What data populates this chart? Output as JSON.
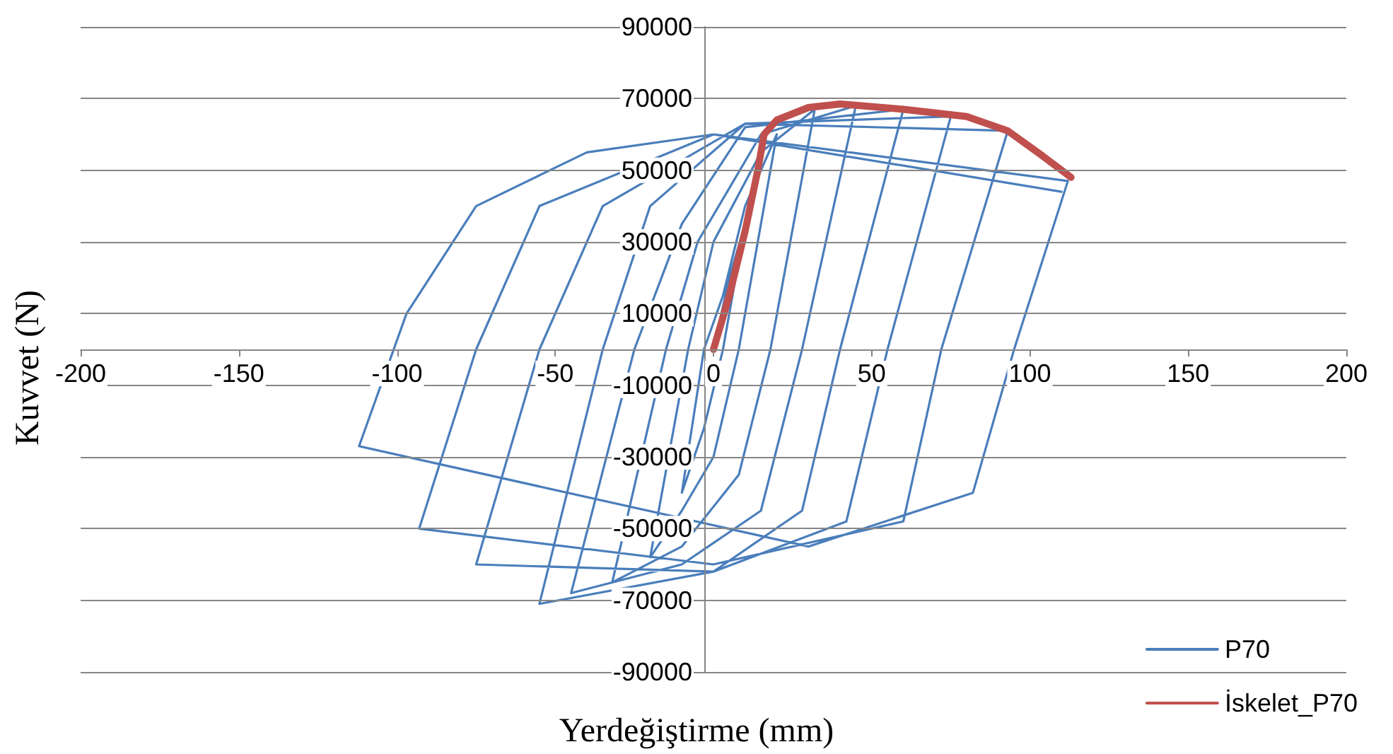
{
  "chart_data": {
    "type": "line",
    "xlabel": "Yerdeğiştirme (mm)",
    "ylabel": "Kuvvet (N)",
    "xlim": [
      -200,
      200
    ],
    "xticks": [
      -200,
      -150,
      -100,
      -50,
      0,
      50,
      100,
      150,
      200
    ],
    "ylim": [
      -90000,
      90000
    ],
    "yticks": [
      -90000,
      -70000,
      -50000,
      -30000,
      -10000,
      10000,
      30000,
      50000,
      70000,
      90000
    ],
    "grid": "y",
    "legend": "bottom right",
    "marker": "none",
    "line_style": "solid",
    "series": [
      {
        "name": "P70",
        "color": "#4a7ebb",
        "x": [
          0,
          5,
          10,
          3,
          -3,
          -10,
          -3,
          3,
          10,
          20,
          8,
          0,
          -10,
          -20,
          -8,
          0,
          15,
          32,
          18,
          8,
          -10,
          -32,
          -15,
          -5,
          15,
          45,
          28,
          15,
          -10,
          -45,
          -25,
          -10,
          10,
          60,
          40,
          28,
          0,
          -55,
          -35,
          -20,
          10,
          75,
          55,
          42,
          0,
          -75,
          -55,
          -35,
          10,
          93,
          72,
          60,
          0,
          -93,
          -75,
          -55,
          0,
          112,
          95,
          82,
          30,
          -112,
          -97,
          -75,
          -40,
          0,
          110
        ],
        "values": [
          0,
          20000,
          35000,
          0,
          -22000,
          -40000,
          0,
          15000,
          40000,
          60000,
          0,
          -30000,
          -45000,
          -58000,
          0,
          30000,
          55000,
          67000,
          0,
          -35000,
          -55000,
          -65000,
          0,
          30000,
          60000,
          68000,
          0,
          -45000,
          -60000,
          -68000,
          0,
          35000,
          62000,
          67000,
          0,
          -45000,
          -62000,
          -71000,
          0,
          40000,
          63000,
          65000,
          0,
          -48000,
          -62000,
          -60000,
          0,
          40000,
          63000,
          61000,
          0,
          -48000,
          -60000,
          -50000,
          0,
          40000,
          60000,
          47000,
          0,
          -40000,
          -55000,
          -27000,
          10000,
          40000,
          55000,
          60000,
          44000
        ]
      },
      {
        "name": "İskelet_P70",
        "color": "#c0504d",
        "x": [
          0,
          5,
          10,
          14,
          16,
          20,
          30,
          40,
          60,
          80,
          93,
          104,
          113
        ],
        "values": [
          0,
          15000,
          33000,
          50000,
          60000,
          64000,
          67500,
          68500,
          67000,
          65000,
          61000,
          54000,
          48000
        ]
      }
    ]
  }
}
